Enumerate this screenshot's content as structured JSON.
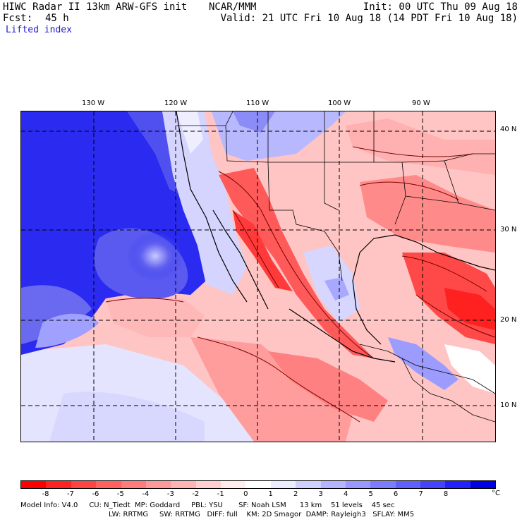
{
  "header": {
    "model_title": "HIWC Radar II 13km ARW-GFS init",
    "org": "NCAR/MMM",
    "init": "Init: 00 UTC Thu 09 Aug 18",
    "fcst_label": "Fcst:",
    "fcst_value": "45 h",
    "valid": "Valid: 21 UTC Fri 10 Aug 18 (14 PDT Fri 10 Aug 18)",
    "field": "Lifted index"
  },
  "map": {
    "lon_labels": [
      "130 W",
      "120 W",
      "110 W",
      "100 W",
      "90 W"
    ],
    "lat_labels": [
      "40 N",
      "30 N",
      "20 N",
      "10 N"
    ]
  },
  "colorbar": {
    "colors": [
      "#ff0000",
      "#ff2222",
      "#ff4444",
      "#ff6060",
      "#ff7c7c",
      "#ff9898",
      "#ffb4b4",
      "#ffd0d0",
      "#ffecec",
      "#ffffff",
      "#ececff",
      "#d0d0ff",
      "#b4b4ff",
      "#9898ff",
      "#7c7cff",
      "#6060ff",
      "#4444ff",
      "#2222ff",
      "#0000e6"
    ],
    "tick_labels": [
      "-8",
      "-7",
      "-6",
      "-5",
      "-4",
      "-3",
      "-2",
      "-1",
      "0",
      "1",
      "2",
      "3",
      "4",
      "5",
      "6",
      "7",
      "8"
    ],
    "unit": "°C"
  },
  "model_info": {
    "line1": "Model Info: V4.0     CU: N_Tiedt  MP: Goddard     PBL: YSU       SF: Noah LSM      13 km    51 levels    45 sec",
    "line2": "LW: RRTMG     SW: RRTMG   DIFF: full    KM: 2D Smagor  DAMP: Rayleigh3   SFLAY: MM5"
  }
}
